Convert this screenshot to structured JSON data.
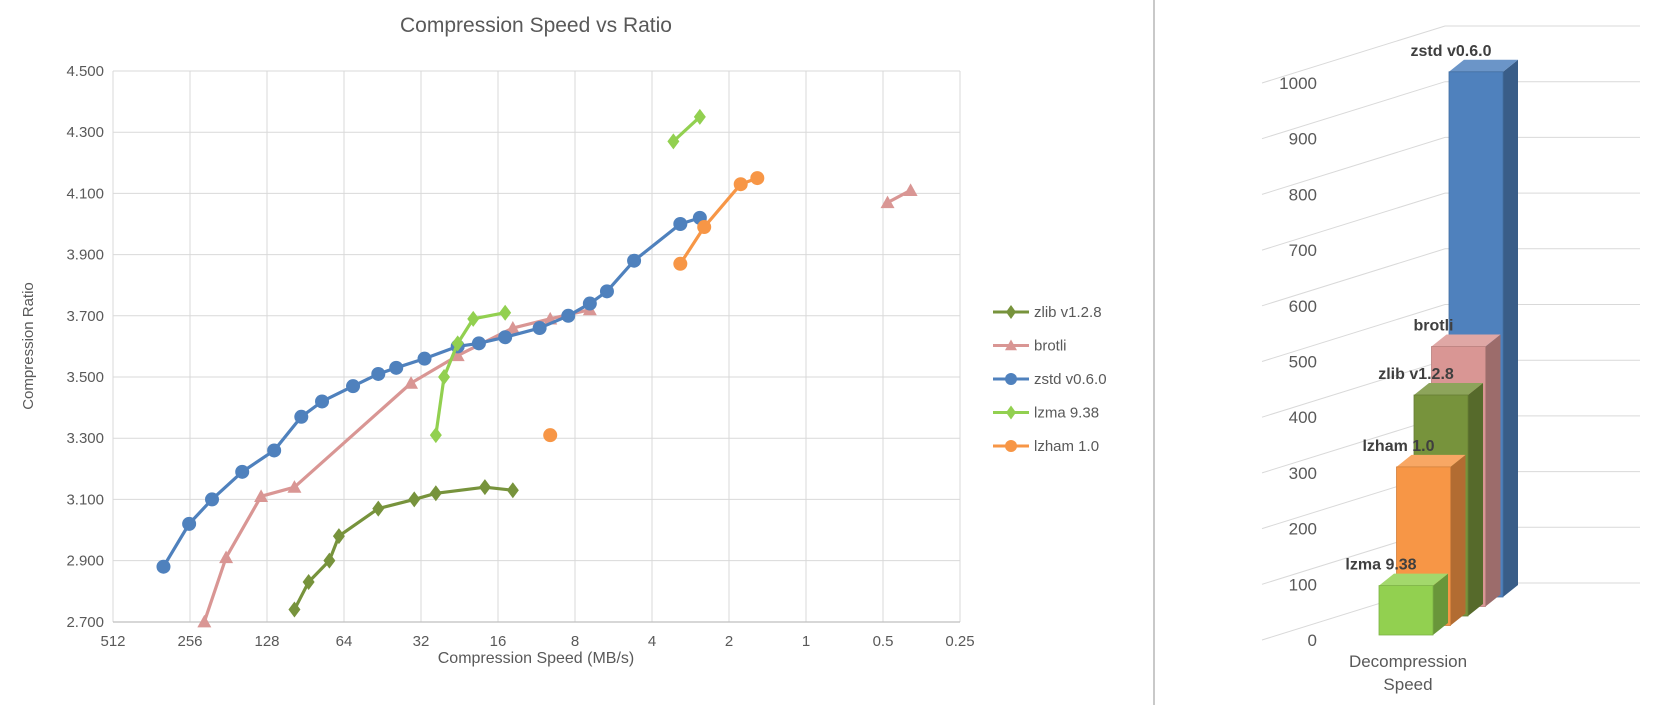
{
  "page": {
    "background": "#ffffff",
    "divider_color": "#c9c9c9",
    "grid_color": "#d9d9d9",
    "axis_line_color": "#bfbfbf",
    "label_color": "#595959",
    "bar_label_color": "#3f3f3f"
  },
  "left_chart": {
    "title": "Compression Speed vs Ratio",
    "x_axis": {
      "title": "Compression Speed (MB/s)"
    },
    "y_axis": {
      "title": "Compression Ratio"
    },
    "legend_items": [
      "zlib v1.2.8",
      "brotli",
      "zstd v0.6.0",
      "lzma 9.38",
      "lzham 1.0"
    ]
  },
  "chart_data": [
    {
      "type": "line",
      "title": "Compression Speed vs Ratio",
      "xlabel": "Compression Speed (MB/s)",
      "ylabel": "Compression Ratio",
      "x_scale": "log2-reversed",
      "x_ticks": [
        "512",
        "256",
        "128",
        "64",
        "32",
        "16",
        "8",
        "4",
        "2",
        "1",
        "0.5",
        "0.25"
      ],
      "ylim": [
        2.7,
        4.5
      ],
      "y_tick_step": 0.2,
      "grid": true,
      "legend_position": "right",
      "series": [
        {
          "name": "zlib v1.2.8",
          "color": "#77933C",
          "marker": "diamond",
          "segments": [
            [
              [
                100,
                2.74
              ],
              [
                88,
                2.83
              ],
              [
                73,
                2.9
              ],
              [
                67,
                2.98
              ],
              [
                47,
                3.07
              ],
              [
                34,
                3.1
              ],
              [
                28,
                3.12
              ],
              [
                18,
                3.14
              ],
              [
                14,
                3.13
              ]
            ]
          ]
        },
        {
          "name": "brotli",
          "color": "#D99694",
          "marker": "triangle",
          "line_leadin": [
            262,
            2.61
          ],
          "segments": [
            [
              [
                225,
                2.7
              ],
              [
                185,
                2.91
              ],
              [
                135,
                3.11
              ],
              [
                100,
                3.14
              ],
              [
                35,
                3.48
              ],
              [
                23,
                3.57
              ],
              [
                14,
                3.66
              ],
              [
                10,
                3.69
              ],
              [
                7,
                3.72
              ]
            ],
            [
              [
                0.48,
                4.07
              ],
              [
                0.39,
                4.11
              ]
            ]
          ]
        },
        {
          "name": "zstd v0.6.0",
          "color": "#4F81BD",
          "marker": "circle",
          "segments": [
            [
              [
                325,
                2.88
              ],
              [
                258,
                3.02
              ],
              [
                210,
                3.1
              ],
              [
                160,
                3.19
              ],
              [
                120,
                3.26
              ],
              [
                94,
                3.37
              ],
              [
                78,
                3.42
              ],
              [
                59,
                3.47
              ],
              [
                47,
                3.51
              ],
              [
                40,
                3.53
              ],
              [
                31,
                3.56
              ],
              [
                23,
                3.6
              ],
              [
                19,
                3.61
              ],
              [
                15,
                3.63
              ],
              [
                11,
                3.66
              ],
              [
                8.5,
                3.7
              ],
              [
                7,
                3.74
              ],
              [
                6,
                3.78
              ],
              [
                4.7,
                3.88
              ],
              [
                3.1,
                4.0
              ],
              [
                2.6,
                4.02
              ]
            ]
          ]
        },
        {
          "name": "lzma 9.38",
          "color": "#92D050",
          "marker": "diamond",
          "segments": [
            [
              [
                28,
                3.31
              ],
              [
                26,
                3.5
              ],
              [
                23,
                3.61
              ],
              [
                20,
                3.69
              ],
              [
                15,
                3.71
              ]
            ],
            [
              [
                3.3,
                4.27
              ],
              [
                2.6,
                4.35
              ]
            ]
          ]
        },
        {
          "name": "lzham 1.0",
          "color": "#F79646",
          "marker": "circle",
          "segments": [
            [
              [
                10,
                3.31
              ]
            ],
            [
              [
                3.1,
                3.87
              ],
              [
                2.5,
                3.99
              ],
              [
                1.8,
                4.13
              ],
              [
                1.55,
                4.15
              ]
            ]
          ]
        }
      ]
    },
    {
      "type": "bar",
      "style": "3d",
      "categories": [
        "Decompression Speed"
      ],
      "ylim": [
        0,
        1000
      ],
      "y_tick_step": 100,
      "grid": true,
      "series": [
        {
          "name": "lzma 9.38",
          "color": "#92D050",
          "value": 95
        },
        {
          "name": "lzham 1.0",
          "color": "#F79646",
          "value": 305
        },
        {
          "name": "zlib v1.2.8",
          "color": "#77933C",
          "value": 425
        },
        {
          "name": "brotli",
          "color": "#D99694",
          "value": 500
        },
        {
          "name": "zstd v0.6.0",
          "color": "#4F81BD",
          "value": 1010
        }
      ]
    }
  ]
}
